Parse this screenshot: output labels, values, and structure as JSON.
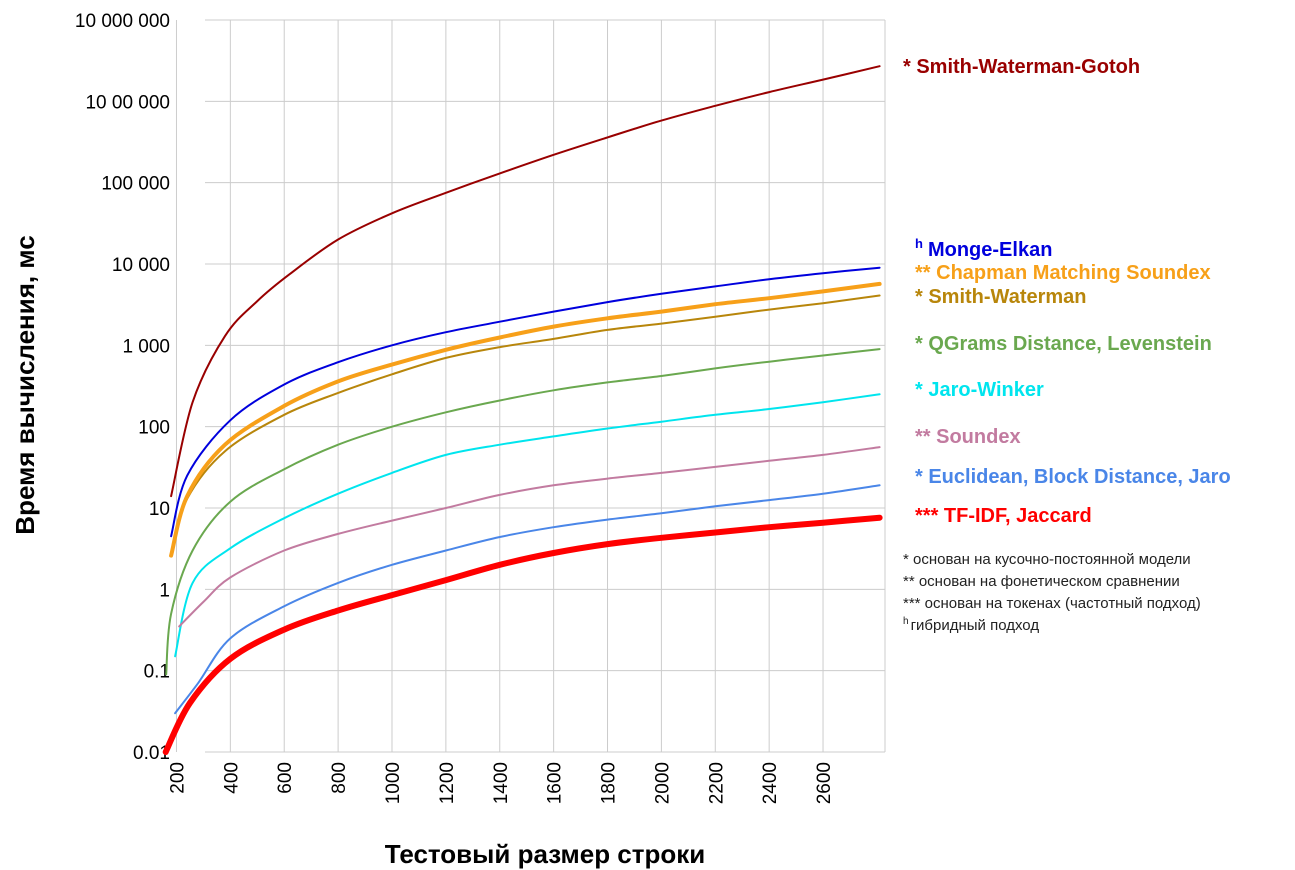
{
  "chart_data": {
    "type": "line",
    "xlabel": "Тестовый размер строки",
    "ylabel": "Время вычисления, мс",
    "y_scale": "log",
    "ylim": [
      0.01,
      10000000
    ],
    "xlim": [
      150,
      2830
    ],
    "grid": true,
    "x_ticks": [
      "200",
      "400",
      "600",
      "800",
      "1000",
      "1200",
      "1400",
      "1600",
      "1800",
      "2000",
      "2200",
      "2400",
      "2600"
    ],
    "y_ticks": [
      {
        "value": 10000000,
        "label": "10 000 000"
      },
      {
        "value": 1000000,
        "label": "10 00 000"
      },
      {
        "value": 100000,
        "label": "100 000"
      },
      {
        "value": 10000,
        "label": "10 000"
      },
      {
        "value": 1000,
        "label": "1 000"
      },
      {
        "value": 100,
        "label": "100"
      },
      {
        "value": 10,
        "label": "10"
      },
      {
        "value": 1,
        "label": "1"
      },
      {
        "value": 0.1,
        "label": "0.1"
      },
      {
        "value": 0.01,
        "label": "0.01"
      }
    ],
    "series": [
      {
        "name": "* Smith-Waterman-Gotoh",
        "color": "#990000",
        "width": 2,
        "points": [
          [
            180,
            14
          ],
          [
            260,
            200
          ],
          [
            380,
            1300
          ],
          [
            500,
            3500
          ],
          [
            620,
            7500
          ],
          [
            800,
            20000
          ],
          [
            1000,
            42000
          ],
          [
            1200,
            75000
          ],
          [
            1400,
            130000
          ],
          [
            1600,
            220000
          ],
          [
            1800,
            360000
          ],
          [
            2000,
            580000
          ],
          [
            2200,
            880000
          ],
          [
            2400,
            1300000
          ],
          [
            2600,
            1850000
          ],
          [
            2810,
            2700000
          ]
        ]
      },
      {
        "name": "Monge-Elkan",
        "prefix": "h",
        "color": "#0000dd",
        "width": 2,
        "points": [
          [
            180,
            4.5
          ],
          [
            240,
            25
          ],
          [
            400,
            120
          ],
          [
            600,
            330
          ],
          [
            800,
            620
          ],
          [
            1000,
            1000
          ],
          [
            1200,
            1450
          ],
          [
            1400,
            1950
          ],
          [
            1600,
            2600
          ],
          [
            1800,
            3400
          ],
          [
            2000,
            4300
          ],
          [
            2200,
            5300
          ],
          [
            2400,
            6500
          ],
          [
            2600,
            7700
          ],
          [
            2810,
            9000
          ]
        ]
      },
      {
        "name": "** Chapman Matching Soundex",
        "color": "#f7a019",
        "width": 4,
        "points": [
          [
            180,
            2.6
          ],
          [
            240,
            14
          ],
          [
            380,
            60
          ],
          [
            600,
            180
          ],
          [
            800,
            360
          ],
          [
            1000,
            580
          ],
          [
            1200,
            880
          ],
          [
            1400,
            1250
          ],
          [
            1600,
            1700
          ],
          [
            1800,
            2150
          ],
          [
            2000,
            2600
          ],
          [
            2200,
            3200
          ],
          [
            2400,
            3800
          ],
          [
            2600,
            4600
          ],
          [
            2810,
            5700
          ]
        ]
      },
      {
        "name": "* Smith-Waterman",
        "color": "#b8860b",
        "width": 2,
        "points": [
          [
            180,
            2.8
          ],
          [
            240,
            13
          ],
          [
            380,
            50
          ],
          [
            600,
            140
          ],
          [
            800,
            260
          ],
          [
            1000,
            440
          ],
          [
            1200,
            700
          ],
          [
            1400,
            950
          ],
          [
            1600,
            1200
          ],
          [
            1800,
            1550
          ],
          [
            2000,
            1850
          ],
          [
            2200,
            2250
          ],
          [
            2400,
            2750
          ],
          [
            2600,
            3300
          ],
          [
            2810,
            4100
          ]
        ]
      },
      {
        "name": "* QGrams Distance, Levenstein",
        "color": "#6aa84f",
        "width": 2,
        "points": [
          [
            162,
            0.09
          ],
          [
            180,
            0.5
          ],
          [
            260,
            3
          ],
          [
            400,
            12
          ],
          [
            600,
            30
          ],
          [
            800,
            60
          ],
          [
            1000,
            100
          ],
          [
            1200,
            150
          ],
          [
            1400,
            210
          ],
          [
            1600,
            280
          ],
          [
            1800,
            350
          ],
          [
            2000,
            420
          ],
          [
            2200,
            520
          ],
          [
            2400,
            630
          ],
          [
            2600,
            750
          ],
          [
            2810,
            900
          ]
        ]
      },
      {
        "name": "* Jaro-Winker",
        "color": "#00e5ee",
        "width": 2,
        "points": [
          [
            195,
            0.15
          ],
          [
            260,
            1.2
          ],
          [
            400,
            3.2
          ],
          [
            600,
            7.5
          ],
          [
            800,
            15
          ],
          [
            1000,
            27
          ],
          [
            1200,
            45
          ],
          [
            1400,
            60
          ],
          [
            1600,
            76
          ],
          [
            1800,
            95
          ],
          [
            2000,
            115
          ],
          [
            2200,
            140
          ],
          [
            2400,
            165
          ],
          [
            2600,
            200
          ],
          [
            2810,
            250
          ]
        ]
      },
      {
        "name": "** Soundex",
        "color": "#c27ba0",
        "width": 2,
        "points": [
          [
            210,
            0.35
          ],
          [
            300,
            0.7
          ],
          [
            400,
            1.4
          ],
          [
            600,
            3
          ],
          [
            800,
            4.8
          ],
          [
            1000,
            7
          ],
          [
            1200,
            10
          ],
          [
            1400,
            14.5
          ],
          [
            1600,
            19
          ],
          [
            1800,
            23
          ],
          [
            2000,
            27
          ],
          [
            2200,
            32
          ],
          [
            2400,
            38
          ],
          [
            2600,
            45
          ],
          [
            2810,
            56
          ]
        ]
      },
      {
        "name": "* Euclidean, Block Distance, Jaro",
        "color": "#4a86e8",
        "width": 2,
        "points": [
          [
            195,
            0.03
          ],
          [
            280,
            0.07
          ],
          [
            400,
            0.25
          ],
          [
            600,
            0.62
          ],
          [
            800,
            1.2
          ],
          [
            1000,
            2
          ],
          [
            1200,
            3
          ],
          [
            1400,
            4.4
          ],
          [
            1600,
            5.8
          ],
          [
            1800,
            7.2
          ],
          [
            2000,
            8.6
          ],
          [
            2200,
            10.5
          ],
          [
            2400,
            12.5
          ],
          [
            2600,
            15
          ],
          [
            2810,
            19
          ]
        ]
      },
      {
        "name": "*** TF-IDF, Jaccard",
        "color": "#ff0000",
        "width": 6,
        "points": [
          [
            160,
            0.01
          ],
          [
            250,
            0.04
          ],
          [
            400,
            0.14
          ],
          [
            600,
            0.32
          ],
          [
            800,
            0.55
          ],
          [
            1000,
            0.85
          ],
          [
            1200,
            1.3
          ],
          [
            1400,
            2
          ],
          [
            1600,
            2.8
          ],
          [
            1800,
            3.6
          ],
          [
            2000,
            4.3
          ],
          [
            2200,
            5
          ],
          [
            2400,
            5.8
          ],
          [
            2600,
            6.6
          ],
          [
            2810,
            7.6
          ]
        ]
      }
    ]
  },
  "footnotes": [
    "* основан на кусочно-постоянной модели",
    "** основан на фонетическом сравнении",
    "*** основан на токенах (частотный подход)",
    "гибридный подход"
  ],
  "footnote_h_marker": "h"
}
